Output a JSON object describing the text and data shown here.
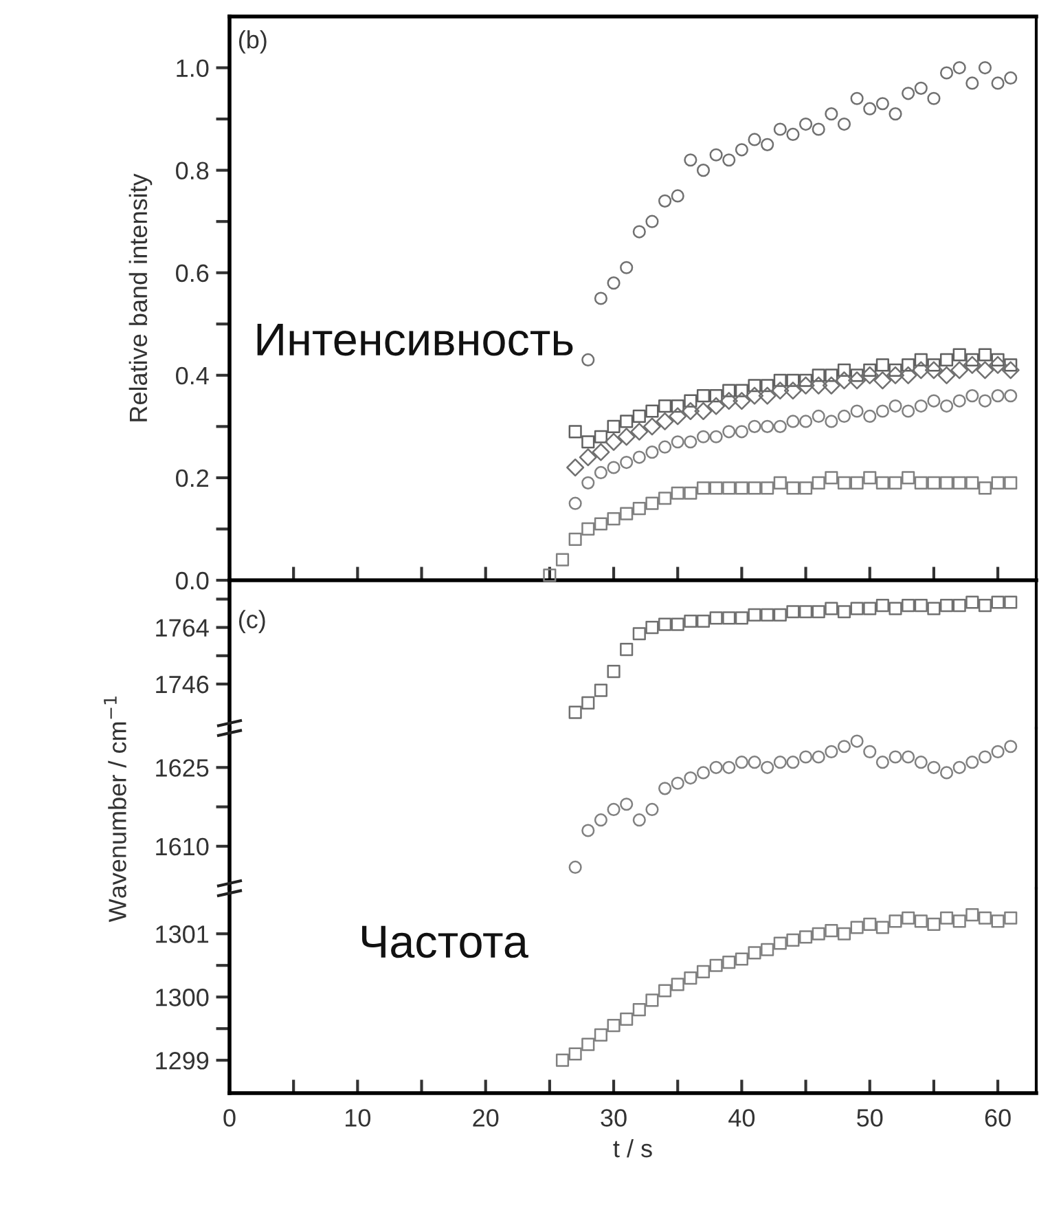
{
  "chart_data": [
    {
      "type": "scatter",
      "ylabel": "Relative band intensity",
      "annotations": [
        "(b)",
        "Интенсивность"
      ],
      "xlim": [
        0,
        63
      ],
      "ylim": [
        0,
        1.1
      ],
      "xticks": [
        {
          "value": 0,
          "label": null
        },
        {
          "value": 5,
          "label": null
        },
        {
          "value": 10,
          "label": null
        },
        {
          "value": 15,
          "label": null
        },
        {
          "value": 20,
          "label": null
        },
        {
          "value": 25,
          "label": null
        },
        {
          "value": 30,
          "label": null
        },
        {
          "value": 35,
          "label": null
        },
        {
          "value": 40,
          "label": null
        },
        {
          "value": 45,
          "label": null
        },
        {
          "value": 50,
          "label": null
        },
        {
          "value": 55,
          "label": null
        },
        {
          "value": 60,
          "label": null
        }
      ],
      "yticks": [
        {
          "value": 0,
          "label": "0.0"
        },
        {
          "value": 0.1,
          "label": null
        },
        {
          "value": 0.2,
          "label": "0.2"
        },
        {
          "value": 0.3,
          "label": null
        },
        {
          "value": 0.4,
          "label": "0.4"
        },
        {
          "value": 0.5,
          "label": null
        },
        {
          "value": 0.6,
          "label": "0.6"
        },
        {
          "value": 0.7,
          "label": null
        },
        {
          "value": 0.8,
          "label": "0.8"
        },
        {
          "value": 0.9,
          "label": null
        },
        {
          "value": 1.0,
          "label": "1.0"
        }
      ],
      "tick_labels": "y",
      "grid": false,
      "series": [
        {
          "color": "#707070",
          "marker": "circle",
          "x": [
            28,
            29,
            30,
            31,
            32,
            33,
            34,
            35,
            36,
            37,
            38,
            39,
            40,
            41,
            42,
            43,
            44,
            45,
            46,
            47,
            48,
            49,
            50,
            51,
            52,
            53,
            54,
            55,
            56,
            57,
            58,
            59,
            60,
            61
          ],
          "values": [
            0.43,
            0.55,
            0.58,
            0.61,
            0.68,
            0.7,
            0.74,
            0.75,
            0.82,
            0.8,
            0.83,
            0.82,
            0.84,
            0.86,
            0.85,
            0.88,
            0.87,
            0.89,
            0.88,
            0.91,
            0.89,
            0.94,
            0.92,
            0.93,
            0.91,
            0.95,
            0.96,
            0.94,
            0.99,
            1.0,
            0.97,
            1.0,
            0.97,
            0.98
          ]
        },
        {
          "color": "#606060",
          "marker": "square",
          "x": [
            27,
            28,
            29,
            30,
            31,
            32,
            33,
            34,
            35,
            36,
            37,
            38,
            39,
            40,
            41,
            42,
            43,
            44,
            45,
            46,
            47,
            48,
            49,
            50,
            51,
            52,
            53,
            54,
            55,
            56,
            57,
            58,
            59,
            60,
            61
          ],
          "values": [
            0.29,
            0.27,
            0.28,
            0.3,
            0.31,
            0.32,
            0.33,
            0.34,
            0.34,
            0.35,
            0.36,
            0.36,
            0.37,
            0.37,
            0.38,
            0.38,
            0.39,
            0.39,
            0.39,
            0.4,
            0.4,
            0.41,
            0.4,
            0.41,
            0.42,
            0.41,
            0.42,
            0.43,
            0.42,
            0.43,
            0.44,
            0.43,
            0.44,
            0.43,
            0.42
          ]
        },
        {
          "color": "#707070",
          "marker": "diamond",
          "x": [
            27,
            28,
            29,
            30,
            31,
            32,
            33,
            34,
            35,
            36,
            37,
            38,
            39,
            40,
            41,
            42,
            43,
            44,
            45,
            46,
            47,
            48,
            49,
            50,
            51,
            52,
            53,
            54,
            55,
            56,
            57,
            58,
            59,
            60,
            61
          ],
          "values": [
            0.22,
            0.24,
            0.25,
            0.27,
            0.28,
            0.29,
            0.3,
            0.31,
            0.32,
            0.33,
            0.33,
            0.34,
            0.35,
            0.35,
            0.36,
            0.36,
            0.37,
            0.37,
            0.38,
            0.38,
            0.38,
            0.39,
            0.39,
            0.4,
            0.39,
            0.4,
            0.4,
            0.41,
            0.41,
            0.4,
            0.41,
            0.42,
            0.41,
            0.42,
            0.41
          ]
        },
        {
          "color": "#808080",
          "marker": "circle",
          "x": [
            27,
            28,
            29,
            30,
            31,
            32,
            33,
            34,
            35,
            36,
            37,
            38,
            39,
            40,
            41,
            42,
            43,
            44,
            45,
            46,
            47,
            48,
            49,
            50,
            51,
            52,
            53,
            54,
            55,
            56,
            57,
            58,
            59,
            60,
            61
          ],
          "values": [
            0.15,
            0.19,
            0.21,
            0.22,
            0.23,
            0.24,
            0.25,
            0.26,
            0.27,
            0.27,
            0.28,
            0.28,
            0.29,
            0.29,
            0.3,
            0.3,
            0.3,
            0.31,
            0.31,
            0.32,
            0.31,
            0.32,
            0.33,
            0.32,
            0.33,
            0.34,
            0.33,
            0.34,
            0.35,
            0.34,
            0.35,
            0.36,
            0.35,
            0.36,
            0.36
          ]
        },
        {
          "color": "#808080",
          "marker": "square",
          "x": [
            25,
            26,
            27,
            28,
            29,
            30,
            31,
            32,
            33,
            34,
            35,
            36,
            37,
            38,
            39,
            40,
            41,
            42,
            43,
            44,
            45,
            46,
            47,
            48,
            49,
            50,
            51,
            52,
            53,
            54,
            55,
            56,
            57,
            58,
            59,
            60,
            61
          ],
          "values": [
            0.01,
            0.04,
            0.08,
            0.1,
            0.11,
            0.12,
            0.13,
            0.14,
            0.15,
            0.16,
            0.17,
            0.17,
            0.18,
            0.18,
            0.18,
            0.18,
            0.18,
            0.18,
            0.19,
            0.18,
            0.18,
            0.19,
            0.2,
            0.19,
            0.19,
            0.2,
            0.19,
            0.19,
            0.2,
            0.19,
            0.19,
            0.19,
            0.19,
            0.19,
            0.18,
            0.19,
            0.19
          ]
        }
      ]
    },
    {
      "type": "scatter",
      "annotations": [
        "(c)"
      ],
      "xlim": [
        0,
        63
      ],
      "ylim": [
        1732,
        1779
      ],
      "yticks": [
        {
          "value": 1746,
          "label": "1746"
        },
        {
          "value": 1755,
          "label": null
        },
        {
          "value": 1764,
          "label": "1764"
        },
        {
          "value": 1773,
          "label": null
        }
      ],
      "tick_labels": "y",
      "grid": false,
      "series": [
        {
          "color": "#707070",
          "marker": "square",
          "x": [
            27,
            28,
            29,
            30,
            31,
            32,
            33,
            34,
            35,
            36,
            37,
            38,
            39,
            40,
            41,
            42,
            43,
            44,
            45,
            46,
            47,
            48,
            49,
            50,
            51,
            52,
            53,
            54,
            55,
            56,
            57,
            58,
            59,
            60,
            61
          ],
          "values": [
            1737,
            1740,
            1744,
            1750,
            1757,
            1762,
            1764,
            1765,
            1765,
            1766,
            1766,
            1767,
            1767,
            1767,
            1768,
            1768,
            1768,
            1769,
            1769,
            1769,
            1770,
            1769,
            1770,
            1770,
            1771,
            1770,
            1771,
            1771,
            1770,
            1771,
            1771,
            1772,
            1771,
            1772,
            1772
          ]
        }
      ]
    },
    {
      "type": "scatter",
      "ylabel": "Wavenumber / cm$^{−1}$",
      "xlim": [
        0,
        63
      ],
      "ylim": [
        1602,
        1632.5
      ],
      "yticks": [
        {
          "value": 1610,
          "label": "1610"
        },
        {
          "value": 1617.5,
          "label": null
        },
        {
          "value": 1625,
          "label": "1625"
        }
      ],
      "tick_labels": "y",
      "grid": false,
      "series": [
        {
          "color": "#808080",
          "marker": "circle",
          "x": [
            27,
            28,
            29,
            30,
            31,
            32,
            33,
            34,
            35,
            36,
            37,
            38,
            39,
            40,
            41,
            42,
            43,
            44,
            45,
            46,
            47,
            48,
            49,
            50,
            51,
            52,
            53,
            54,
            55,
            56,
            57,
            58,
            59,
            60,
            61
          ],
          "values": [
            1606,
            1613,
            1615,
            1617,
            1618,
            1615,
            1617,
            1621,
            1622,
            1623,
            1624,
            1625,
            1625,
            1626,
            1626,
            1625,
            1626,
            1626,
            1627,
            1627,
            1628,
            1629,
            1630,
            1628,
            1626,
            1627,
            1627,
            1626,
            1625,
            1624,
            1625,
            1626,
            1627,
            1628,
            1629
          ]
        }
      ]
    },
    {
      "type": "scatter",
      "xlabel": "t / s",
      "annotations": [
        "Частота"
      ],
      "xlim": [
        0,
        63
      ],
      "ylim": [
        1298.48,
        1301.72
      ],
      "xticks": [
        0,
        {
          "value": 5,
          "label": null
        },
        10,
        {
          "value": 15,
          "label": null
        },
        20,
        {
          "value": 25,
          "label": null
        },
        30,
        {
          "value": 35,
          "label": null
        },
        40,
        {
          "value": 45,
          "label": null
        },
        50,
        {
          "value": 55,
          "label": null
        },
        60
      ],
      "yticks": [
        1299,
        {
          "value": 1299.5,
          "label": null
        },
        1300,
        {
          "value": 1300.5,
          "label": null
        },
        1301
      ],
      "grid": false,
      "series": [
        {
          "color": "#808080",
          "marker": "square",
          "x": [
            26,
            27,
            28,
            29,
            30,
            31,
            32,
            33,
            34,
            35,
            36,
            37,
            38,
            39,
            40,
            41,
            42,
            43,
            44,
            45,
            46,
            47,
            48,
            49,
            50,
            51,
            52,
            53,
            54,
            55,
            56,
            57,
            58,
            59,
            60,
            61
          ],
          "values": [
            1299.0,
            1299.1,
            1299.25,
            1299.4,
            1299.55,
            1299.65,
            1299.8,
            1299.95,
            1300.1,
            1300.2,
            1300.3,
            1300.4,
            1300.5,
            1300.55,
            1300.6,
            1300.7,
            1300.75,
            1300.85,
            1300.9,
            1300.95,
            1301.0,
            1301.05,
            1301.0,
            1301.1,
            1301.15,
            1301.1,
            1301.2,
            1301.25,
            1301.2,
            1301.15,
            1301.25,
            1301.2,
            1301.3,
            1301.25,
            1301.2,
            1301.25
          ]
        }
      ]
    }
  ]
}
